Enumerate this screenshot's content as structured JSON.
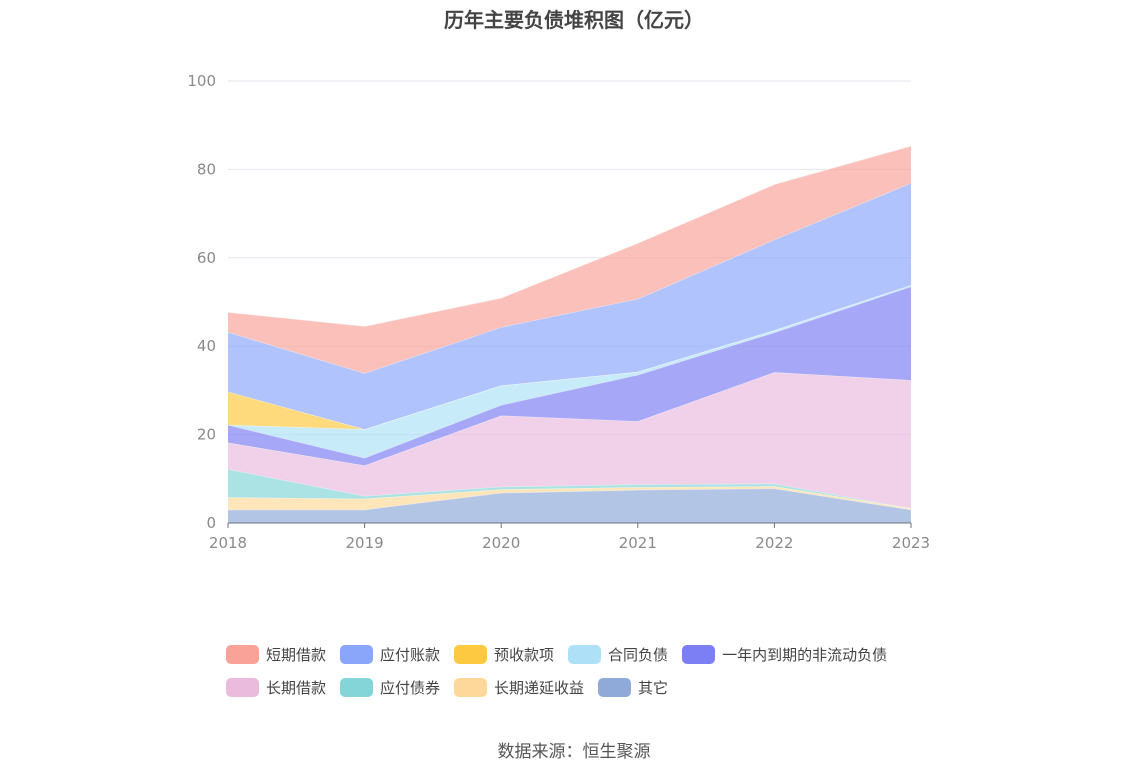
{
  "source_text": "数据来源：恒生聚源",
  "chart_data": {
    "type": "area",
    "stacked": true,
    "title": "历年主要负债堆积图（亿元）",
    "x": [
      "2018",
      "2019",
      "2020",
      "2021",
      "2022",
      "2023"
    ],
    "ylim": [
      0,
      100
    ],
    "yticks": [
      0,
      20,
      40,
      60,
      80,
      100
    ],
    "yticks_text": [
      "0",
      "20",
      "40",
      "60",
      "80",
      "100"
    ],
    "grid": true,
    "legend_position": "bottom",
    "series": [
      {
        "name": "其它",
        "color": "#8fa9d9",
        "values": [
          3.0,
          3.0,
          6.8,
          7.5,
          7.8,
          3.0
        ]
      },
      {
        "name": "长期递延收益",
        "color": "#fdd89a",
        "values": [
          2.8,
          2.5,
          0.8,
          0.6,
          0.5,
          0.3
        ]
      },
      {
        "name": "应付债券",
        "color": "#83d5d7",
        "values": [
          6.4,
          0.6,
          0.6,
          0.6,
          0.6,
          0.0
        ]
      },
      {
        "name": "长期借款",
        "color": "#ebbbde",
        "values": [
          6.0,
          6.9,
          16.1,
          14.3,
          25.2,
          29.0
        ]
      },
      {
        "name": "一年内到期的非流动负债",
        "color": "#7c7ef3",
        "values": [
          4.0,
          1.7,
          2.4,
          10.5,
          9.0,
          21.2
        ]
      },
      {
        "name": "合同负债",
        "color": "#aee1f8",
        "values": [
          0.0,
          6.5,
          4.4,
          0.7,
          0.5,
          0.3
        ]
      },
      {
        "name": "预收款项",
        "color": "#fdc940",
        "values": [
          7.5,
          0.0,
          0.0,
          0.0,
          0.0,
          0.0
        ]
      },
      {
        "name": "应付账款",
        "color": "#8aa6fb",
        "values": [
          13.5,
          12.7,
          13.2,
          16.5,
          20.5,
          23.1
        ]
      },
      {
        "name": "短期借款",
        "color": "#f8a298",
        "values": [
          4.5,
          10.6,
          6.6,
          12.6,
          12.5,
          8.4
        ]
      }
    ]
  },
  "legend_rows": [
    [
      "短期借款",
      "应付账款",
      "预收款项",
      "合同负债",
      "一年内到期的非流动负债"
    ],
    [
      "长期借款",
      "应付债券",
      "长期递延收益",
      "其它"
    ]
  ]
}
